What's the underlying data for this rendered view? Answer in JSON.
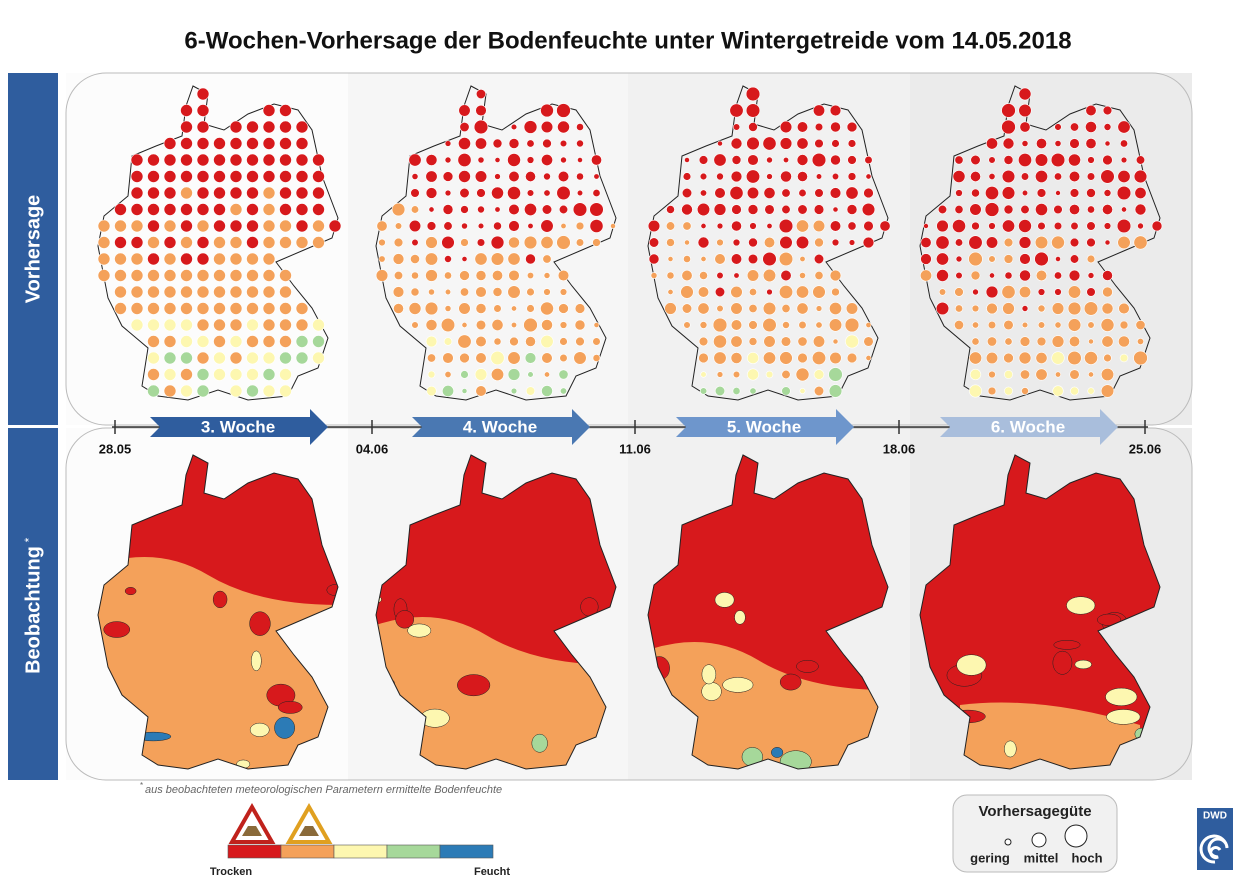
{
  "header": {
    "title": "6-Wochen-Vorhersage der Bodenfeuchte unter Wintergetreide vom 14.05.2018"
  },
  "rows": {
    "forecast": "Vorhersage",
    "observation": "Beobachtung",
    "observation_mark": "*"
  },
  "timeline": {
    "weeks": [
      "3. Woche",
      "4. Woche",
      "5. Woche",
      "6. Woche"
    ],
    "dates": [
      "28.05",
      "04.06",
      "11.06",
      "18.06",
      "25.06"
    ]
  },
  "footnote": {
    "mark": "*",
    "text": "aus beobachteten meteorologischen Parametern ermittelte Bodenfeuchte"
  },
  "legend": {
    "dry": "Trocken",
    "wet": "Feucht"
  },
  "quality": {
    "title": "Vorhersagegüte",
    "labels": [
      "gering",
      "mittel",
      "hoch"
    ]
  },
  "logo": {
    "text": "DWD"
  }
}
